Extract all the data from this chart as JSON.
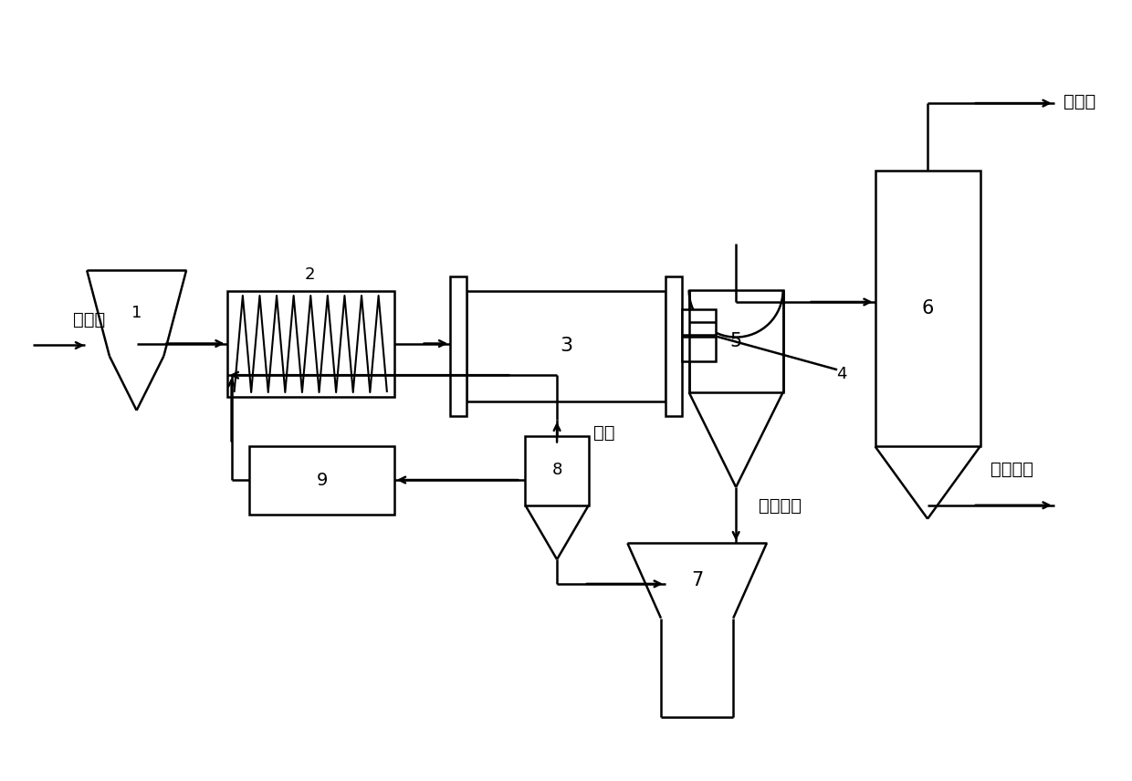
{
  "bg_color": "#ffffff",
  "line_color": "#000000",
  "annotations": {
    "circuit_board": "电路板",
    "pyrolysis_gas": "热解气",
    "pyrolysis_tar": "热解焦油",
    "carrier": "载体",
    "pyrolysis_residue": "热解残渣"
  },
  "font_size_label": 13,
  "font_size_annot": 14,
  "font_size_title": 12
}
